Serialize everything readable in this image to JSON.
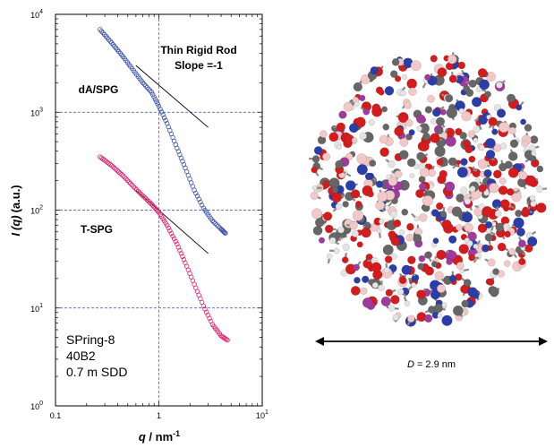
{
  "chart_data": {
    "type": "scatter",
    "x_scale": "log",
    "y_scale": "log",
    "xlim": [
      0.1,
      10
    ],
    "ylim": [
      1,
      10000
    ],
    "grid": true,
    "xlabel": {
      "q": "q",
      "unit": " / nm",
      "exp": "-1"
    },
    "ylabel": {
      "I": "I",
      "q": "(q)",
      "unit": "(a.u.)"
    },
    "x_ticks": [
      {
        "base": "0.1",
        "exp": "",
        "value": 0.1
      },
      {
        "base": "1",
        "exp": "",
        "value": 1
      },
      {
        "base": "10",
        "exp": "1",
        "value": 10
      }
    ],
    "y_ticks": [
      {
        "base": "10",
        "exp": "0",
        "value": 1
      },
      {
        "base": "10",
        "exp": "1",
        "value": 10
      },
      {
        "base": "10",
        "exp": "2",
        "value": 100
      },
      {
        "base": "10",
        "exp": "3",
        "value": 1000
      },
      {
        "base": "10",
        "exp": "4",
        "value": 10000
      }
    ],
    "series": [
      {
        "name": "dA/SPG",
        "color": "#3a4fa8",
        "points": [
          [
            0.27,
            7000
          ],
          [
            0.35,
            5100
          ],
          [
            0.45,
            3700
          ],
          [
            0.55,
            2800
          ],
          [
            0.7,
            2000
          ],
          [
            0.85,
            1600
          ],
          [
            1.0,
            1150
          ],
          [
            1.2,
            770
          ],
          [
            1.5,
            430
          ],
          [
            1.8,
            270
          ],
          [
            2.2,
            160
          ],
          [
            2.7,
            105
          ],
          [
            3.3,
            78
          ],
          [
            4.0,
            64
          ],
          [
            4.4,
            58
          ]
        ]
      },
      {
        "name": "T-SPG",
        "color": "#e0206e",
        "points": [
          [
            0.27,
            350
          ],
          [
            0.35,
            285
          ],
          [
            0.45,
            225
          ],
          [
            0.55,
            180
          ],
          [
            0.7,
            140
          ],
          [
            0.85,
            115
          ],
          [
            1.0,
            95
          ],
          [
            1.2,
            70
          ],
          [
            1.5,
            45
          ],
          [
            1.8,
            29
          ],
          [
            2.2,
            17.5
          ],
          [
            2.7,
            10.5
          ],
          [
            3.3,
            6.8
          ],
          [
            4.0,
            5.2
          ],
          [
            4.6,
            4.7
          ]
        ]
      }
    ],
    "reference_lines": [
      {
        "name": "slope-line-dA",
        "from": [
          0.6,
          3000
        ],
        "to": [
          3.0,
          700
        ]
      },
      {
        "name": "slope-line-T",
        "from": [
          0.6,
          160
        ],
        "to": [
          3.0,
          36
        ]
      }
    ],
    "annotations": {
      "rod_title": "Thin Rigid Rod",
      "rod_slope": "Slope =-1",
      "label_dA": "dA/SPG",
      "label_T": "T-SPG",
      "instrument": [
        "SPring-8",
        "40B2",
        "0.7 m SDD"
      ]
    }
  },
  "molecule": {
    "diameter_symbol": "D",
    "diameter_value": " = 2.9 nm",
    "atom_colors": {
      "carbon": "#666666",
      "oxygen": "#d41c1c",
      "nitrogen": "#2b3ea8",
      "phosphorus": "#a03a9c",
      "hydrogen": "#e4e4e4",
      "faded": "#f2c8c8"
    }
  }
}
